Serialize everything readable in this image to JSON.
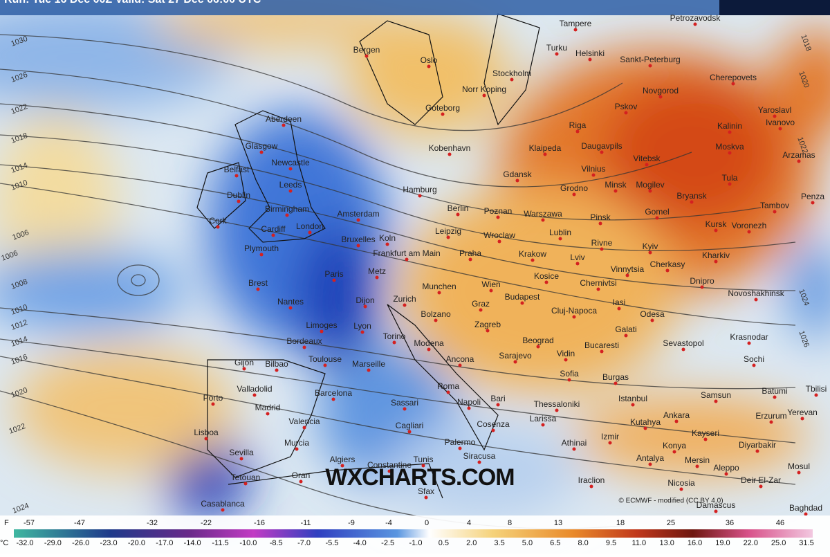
{
  "header": {
    "run_info": "Run: Tue 16 Dec 00Z Valid: Sat 27 Dec 06:00 UTC"
  },
  "watermark": "WXCHARTS.COM",
  "credit": "© ECMWF - modified (CC BY 4.0)",
  "isobar_labels": [
    "1030",
    "1026",
    "1022",
    "1018",
    "1014",
    "1010",
    "1006",
    "1006",
    "1008",
    "1010",
    "1012",
    "1014",
    "1016",
    "1020",
    "1022",
    "1024",
    "1018",
    "1020",
    "1022",
    "1024",
    "1026"
  ],
  "cities": [
    "Tampere",
    "Petrozavodsk",
    "Bergen",
    "Oslo",
    "Turku",
    "Helsinki",
    "Sankt-Peterburg",
    "Cherepovets",
    "Stockholm",
    "Norr Koping",
    "Novgorod",
    "Goteborg",
    "Pskov",
    "Yaroslavl",
    "Aberdeen",
    "Riga",
    "Kalinin",
    "Ivanovo",
    "Glasgow",
    "Kobenhavn",
    "Klaipeda",
    "Daugavpils",
    "Moskva",
    "Arzamas",
    "Newcastle",
    "Vitebsk",
    "Belfast",
    "Vilnius",
    "Gdansk",
    "Leeds",
    "Dublin",
    "Hamburg",
    "Grodno",
    "Minsk",
    "Mogilev",
    "Tula",
    "Bryansk",
    "Tambov",
    "Penza",
    "Birmingham",
    "Amsterdam",
    "Berlin",
    "Poznan",
    "Warszawa",
    "Cork",
    "Cardiff",
    "London",
    "Leipzig",
    "Pinsk",
    "Gomel",
    "Kursk",
    "Voronezh",
    "Lublin",
    "Wroclaw",
    "Bruxelles",
    "Koln",
    "Plymouth",
    "Rivne",
    "Kyiv",
    "Praha",
    "Krakow",
    "Frankfurt am Main",
    "Lviv",
    "Kharkiv",
    "Cherkasy",
    "Vinnytsia",
    "Paris",
    "Metz",
    "Kosice",
    "Brest",
    "Dnipro",
    "Munchen",
    "Wien",
    "Chernivtsi",
    "Novoshakhinsk",
    "Dijon",
    "Zurich",
    "Budapest",
    "Nantes",
    "Iasi",
    "Graz",
    "Cluj-Napoca",
    "Odesa",
    "Bolzano",
    "Limoges",
    "Lyon",
    "Zagreb",
    "Galati",
    "Torino",
    "Krasnodar",
    "Bordeaux",
    "Beograd",
    "Sevastopol",
    "Modena",
    "Bucaresti",
    "Vidin",
    "Toulouse",
    "Gijon",
    "Bilbao",
    "Ancona",
    "Sarajevo",
    "Sochi",
    "Marseille",
    "Sofia",
    "Burgas",
    "Valladolid",
    "Barcelona",
    "Batumi",
    "Tbilisi",
    "Roma",
    "Porto",
    "Bari",
    "Samsun",
    "Istanbul",
    "Napoli",
    "Madrid",
    "Sassari",
    "Thessaloniki",
    "Yerevan",
    "Ankara",
    "Erzurum",
    "Larissa",
    "Valencia",
    "Kutahya",
    "Cagliari",
    "Cosenza",
    "Izmir",
    "Kayseri",
    "Lisboa",
    "Murcia",
    "Palermo",
    "Konya",
    "Diyarbakir",
    "Athinai",
    "Sevilla",
    "Siracusa",
    "Antalya",
    "Mersin",
    "Mosul",
    "Algiers",
    "Constantine",
    "Tunis",
    "Aleppo",
    "Tetouan",
    "Oran",
    "Deir El-Zar",
    "Iraclion",
    "Nicosia",
    "Sfax",
    "Casablanca",
    "Damascus",
    "Baghdad"
  ],
  "legend": {
    "f_unit": "F",
    "f_labels": [
      "-57",
      "-47",
      "-32",
      "-22",
      "-16",
      "-11",
      "-9",
      "-4",
      "0",
      "4",
      "8",
      "13",
      "18",
      "25",
      "36",
      "46"
    ],
    "c_unit": "°C",
    "c_labels": [
      "-32.0",
      "-29.0",
      "-26.0",
      "-23.0",
      "-20.0",
      "-17.0",
      "-14.0",
      "-11.5",
      "-10.0",
      "-8.5",
      "-7.0",
      "-5.5",
      "-4.0",
      "-2.5",
      "-1.0",
      "0.5",
      "2.0",
      "3.5",
      "5.0",
      "6.5",
      "8.0",
      "9.5",
      "11.0",
      "13.0",
      "16.0",
      "19.0",
      "22.0",
      "25.0",
      "31.5"
    ]
  }
}
